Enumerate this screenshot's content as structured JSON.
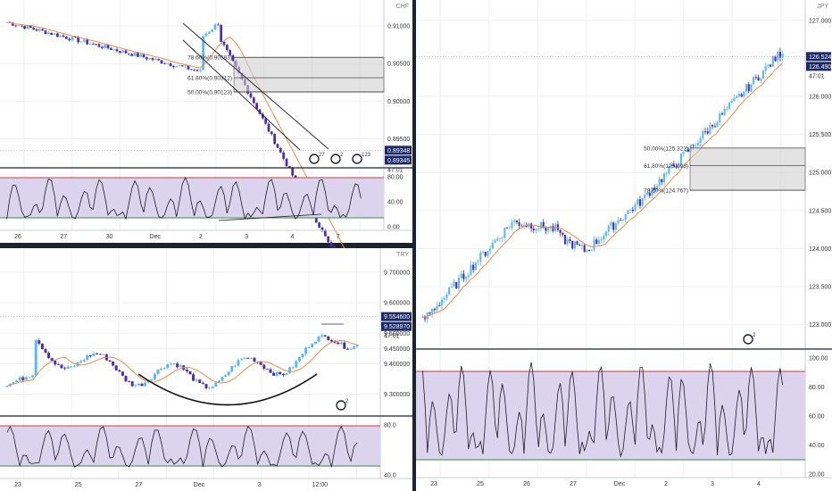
{
  "colors": {
    "bg": "#ffffff",
    "frame": "#1e222d",
    "grid": "#eef0f4",
    "up": "#5cb8f0",
    "down": "#4a2fa8",
    "ma": "#ef8a4a",
    "rsi_fill": "#dcd3ee",
    "rsi_line": "#1e1e2a",
    "rsi_upper": "#d63a3a",
    "rsi_lower": "#3d8a3d",
    "fib_zone": "#d0d0d0",
    "text": "#333333",
    "badge": "#1e222d",
    "price_label": "#1b2a66"
  },
  "panels": [
    {
      "id": "chf",
      "symbol": "CHF",
      "price_ticks": [
        "0.91000",
        "0.90500",
        "0.90000",
        "0.89500"
      ],
      "price_range": [
        0.8915,
        0.9125
      ],
      "last_price": "0.89348",
      "last_price_2": "0.89345",
      "countdown": "47:01",
      "fib_levels": [
        {
          "label": "78.60%(0.90583)",
          "value": 0.90583
        },
        {
          "label": "61.80%(0.90312)",
          "value": 0.90312
        },
        {
          "label": "50.00%(0.90123)",
          "value": 0.90123
        }
      ],
      "rsi_ticks": [
        "80.00",
        "40.00",
        "0.00"
      ],
      "x_ticks": [
        "26",
        "27",
        "30",
        "Dec",
        "2",
        "3",
        "4",
        "7"
      ],
      "badges": [
        "27",
        "2",
        "123"
      ]
    },
    {
      "id": "try",
      "symbol": "TRY",
      "price_ticks": [
        "9.700000",
        "9.600000",
        "9.500000",
        "9.450000",
        "9.400000",
        "9.300000"
      ],
      "price_range": [
        9.24,
        9.75
      ],
      "last_price": "9.554600",
      "last_price_2": "9.528970",
      "countdown": "47:01",
      "rsi_ticks": [
        "80.0",
        "40.0"
      ],
      "x_ticks": [
        "23",
        "25",
        "27",
        "Dec",
        "3",
        "12:00"
      ],
      "badges": [
        "2"
      ]
    },
    {
      "id": "jpy",
      "symbol": "JPY",
      "price_ticks": [
        "127.000",
        "126.500",
        "126.000",
        "125.500",
        "125.000",
        "124.500",
        "124.000",
        "123.500",
        "123.000"
      ],
      "price_range": [
        122.75,
        127.15
      ],
      "last_price": "126.524",
      "last_price_2": "126.490",
      "countdown": "47:01",
      "fib_levels": [
        {
          "label": "50.00%(125.322)",
          "value": 125.322
        },
        {
          "label": "61.80%(125.093)",
          "value": 125.093
        },
        {
          "label": "78.60%(124.767)",
          "value": 124.767
        }
      ],
      "rsi_ticks": [
        "100.00",
        "80.00",
        "60.00",
        "40.00",
        "20.00"
      ],
      "x_ticks": [
        "23",
        "25",
        "26",
        "27",
        "Dec",
        "2",
        "3",
        "4"
      ],
      "badges": [
        "2"
      ]
    }
  ]
}
